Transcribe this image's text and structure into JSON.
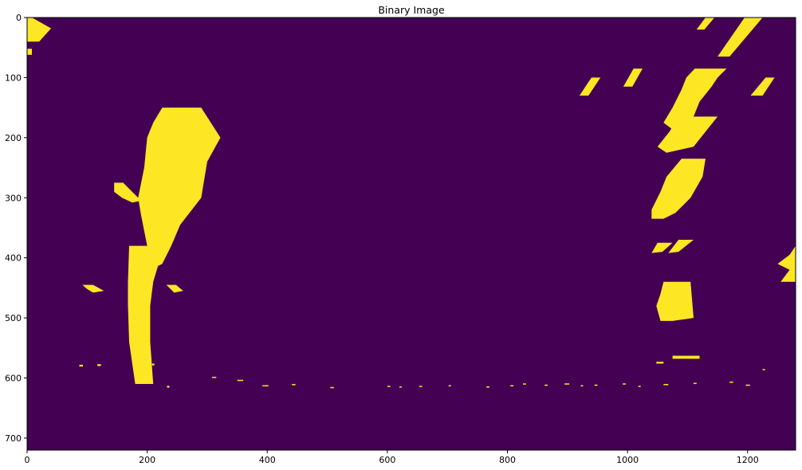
{
  "chart_data": {
    "type": "heatmap",
    "title": "Binary Image",
    "colormap": "viridis",
    "colors": {
      "background": "#440154",
      "foreground": "#fde725"
    },
    "image_size": {
      "width": 1280,
      "height": 720
    },
    "xlim": [
      0,
      1280
    ],
    "ylim": [
      720,
      0
    ],
    "x_ticks": [
      0,
      200,
      400,
      600,
      800,
      1000,
      1200
    ],
    "y_ticks": [
      0,
      100,
      200,
      300,
      400,
      500,
      600,
      700
    ],
    "grid": false,
    "x_tick_labels": [
      "0",
      "200",
      "400",
      "600",
      "800",
      "1000",
      "1200"
    ],
    "y_tick_labels": [
      "0",
      "100",
      "200",
      "300",
      "400",
      "500",
      "600",
      "700"
    ],
    "regions": [
      {
        "name": "top-left-corner-stroke",
        "points": [
          [
            0,
            0
          ],
          [
            8,
            0
          ],
          [
            40,
            18
          ],
          [
            20,
            40
          ],
          [
            0,
            40
          ]
        ]
      },
      {
        "name": "top-left-small-block",
        "points": [
          [
            0,
            52
          ],
          [
            8,
            52
          ],
          [
            8,
            62
          ],
          [
            0,
            62
          ]
        ]
      },
      {
        "name": "left-lane-upper",
        "points": [
          [
            225,
            150
          ],
          [
            240,
            150
          ],
          [
            275,
            150
          ],
          [
            290,
            150
          ],
          [
            322,
            200
          ],
          [
            300,
            240
          ],
          [
            290,
            300
          ],
          [
            255,
            345
          ],
          [
            240,
            380
          ],
          [
            225,
            410
          ],
          [
            205,
            420
          ],
          [
            200,
            380
          ],
          [
            190,
            330
          ],
          [
            185,
            300
          ],
          [
            195,
            250
          ],
          [
            200,
            200
          ],
          [
            210,
            175
          ]
        ]
      },
      {
        "name": "left-lane-lower",
        "points": [
          [
            170,
            380
          ],
          [
            200,
            380
          ],
          [
            225,
            390
          ],
          [
            210,
            440
          ],
          [
            205,
            480
          ],
          [
            205,
            540
          ],
          [
            210,
            610
          ],
          [
            180,
            610
          ],
          [
            170,
            540
          ],
          [
            168,
            480
          ],
          [
            168,
            440
          ]
        ]
      },
      {
        "name": "left-side-dash",
        "points": [
          [
            145,
            275
          ],
          [
            160,
            275
          ],
          [
            175,
            290
          ],
          [
            190,
            305
          ],
          [
            175,
            308
          ],
          [
            158,
            300
          ],
          [
            145,
            290
          ]
        ]
      },
      {
        "name": "left-lower-dash",
        "points": [
          [
            92,
            445
          ],
          [
            110,
            445
          ],
          [
            128,
            455
          ],
          [
            110,
            458
          ],
          [
            100,
            452
          ]
        ]
      },
      {
        "name": "left-lower-dash-right",
        "points": [
          [
            232,
            445
          ],
          [
            248,
            445
          ],
          [
            260,
            455
          ],
          [
            245,
            458
          ]
        ]
      },
      {
        "name": "right-top-stroke-a",
        "points": [
          [
            1130,
            0
          ],
          [
            1145,
            0
          ],
          [
            1128,
            20
          ],
          [
            1115,
            20
          ]
        ]
      },
      {
        "name": "right-top-stroke-b",
        "points": [
          [
            1195,
            0
          ],
          [
            1225,
            0
          ],
          [
            1170,
            65
          ],
          [
            1150,
            65
          ]
        ]
      },
      {
        "name": "right-mid-dash-a",
        "points": [
          [
            940,
            100
          ],
          [
            955,
            100
          ],
          [
            935,
            130
          ],
          [
            920,
            130
          ]
        ]
      },
      {
        "name": "right-mid-dash-b",
        "points": [
          [
            1010,
            85
          ],
          [
            1025,
            85
          ],
          [
            1008,
            115
          ],
          [
            993,
            115
          ]
        ]
      },
      {
        "name": "right-mid-dash-c",
        "points": [
          [
            1230,
            100
          ],
          [
            1245,
            100
          ],
          [
            1225,
            130
          ],
          [
            1205,
            130
          ]
        ]
      },
      {
        "name": "right-lane-upper-a",
        "points": [
          [
            1112,
            85
          ],
          [
            1165,
            85
          ],
          [
            1150,
            100
          ],
          [
            1140,
            115
          ],
          [
            1120,
            140
          ],
          [
            1110,
            165
          ],
          [
            1095,
            180
          ],
          [
            1080,
            190
          ],
          [
            1060,
            175
          ],
          [
            1075,
            150
          ],
          [
            1090,
            120
          ],
          [
            1098,
            100
          ]
        ]
      },
      {
        "name": "right-lane-upper-b",
        "points": [
          [
            1085,
            165
          ],
          [
            1150,
            165
          ],
          [
            1130,
            190
          ],
          [
            1110,
            215
          ],
          [
            1065,
            225
          ],
          [
            1050,
            215
          ],
          [
            1070,
            190
          ]
        ]
      },
      {
        "name": "right-lane-mid",
        "points": [
          [
            1090,
            235
          ],
          [
            1130,
            235
          ],
          [
            1125,
            265
          ],
          [
            1105,
            300
          ],
          [
            1080,
            325
          ],
          [
            1060,
            335
          ],
          [
            1040,
            335
          ],
          [
            1040,
            320
          ],
          [
            1055,
            290
          ],
          [
            1065,
            265
          ]
        ]
      },
      {
        "name": "right-lane-small-dash",
        "points": [
          [
            1050,
            375
          ],
          [
            1075,
            375
          ],
          [
            1058,
            390
          ],
          [
            1040,
            392
          ]
        ]
      },
      {
        "name": "right-lane-small-dash-b",
        "points": [
          [
            1085,
            370
          ],
          [
            1110,
            370
          ],
          [
            1085,
            390
          ],
          [
            1068,
            392
          ]
        ]
      },
      {
        "name": "right-lane-lower",
        "points": [
          [
            1060,
            440
          ],
          [
            1105,
            440
          ],
          [
            1110,
            500
          ],
          [
            1075,
            505
          ],
          [
            1055,
            505
          ],
          [
            1048,
            480
          ],
          [
            1055,
            460
          ]
        ]
      },
      {
        "name": "right-edge-triangle",
        "points": [
          [
            1280,
            380
          ],
          [
            1280,
            440
          ],
          [
            1255,
            440
          ],
          [
            1270,
            420
          ],
          [
            1250,
            410
          ],
          [
            1270,
            395
          ]
        ]
      }
    ],
    "specks": [
      [
        87,
        578,
        6,
        3
      ],
      [
        117,
        577,
        6,
        3
      ],
      [
        208,
        576,
        4,
        3
      ],
      [
        233,
        613,
        4,
        3
      ],
      [
        308,
        598,
        7,
        2
      ],
      [
        350,
        603,
        10,
        2
      ],
      [
        392,
        612,
        10,
        2
      ],
      [
        441,
        610,
        6,
        2
      ],
      [
        505,
        615,
        6,
        2
      ],
      [
        600,
        613,
        5,
        2
      ],
      [
        620,
        614,
        4,
        2
      ],
      [
        653,
        613,
        5,
        2
      ],
      [
        702,
        612,
        4,
        2
      ],
      [
        765,
        614,
        5,
        2
      ],
      [
        805,
        612,
        5,
        2
      ],
      [
        826,
        609,
        5,
        2
      ],
      [
        862,
        611,
        5,
        2
      ],
      [
        895,
        609,
        8,
        2
      ],
      [
        922,
        612,
        4,
        2
      ],
      [
        945,
        611,
        5,
        2
      ],
      [
        992,
        609,
        5,
        2
      ],
      [
        1018,
        613,
        4,
        2
      ],
      [
        1060,
        610,
        8,
        2
      ],
      [
        1110,
        608,
        5,
        2
      ],
      [
        1170,
        606,
        6,
        2
      ],
      [
        1197,
        611,
        7,
        2
      ],
      [
        1225,
        585,
        4,
        2
      ],
      [
        1075,
        563,
        45,
        5
      ],
      [
        1048,
        573,
        12,
        3
      ]
    ]
  }
}
